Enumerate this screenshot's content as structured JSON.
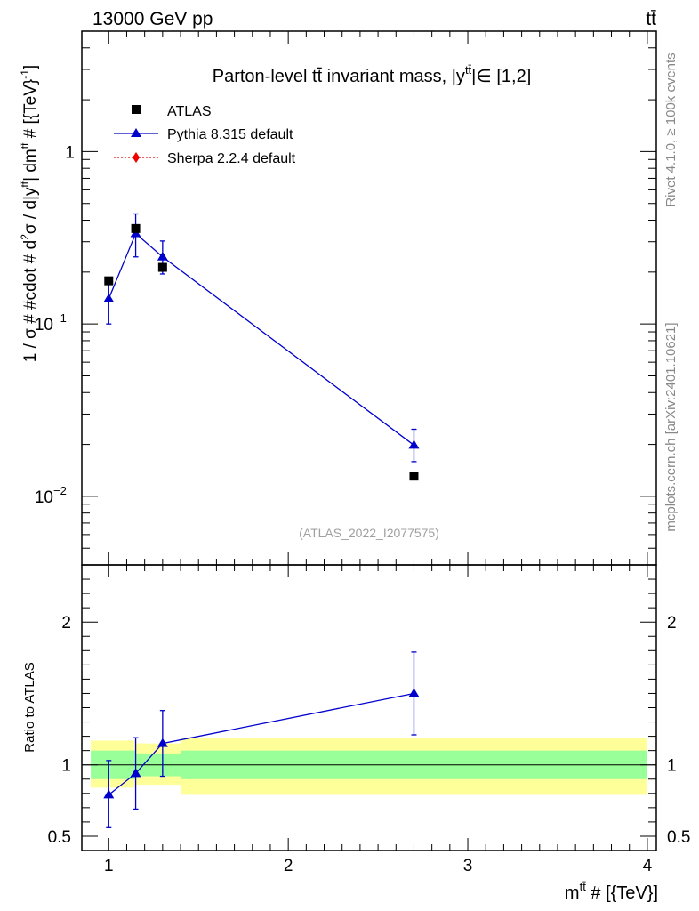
{
  "header": {
    "left": "13000 GeV pp",
    "right": "tt̄"
  },
  "side": {
    "rivet": "Rivet 4.1.0, ≥ 100k events",
    "mcplots": "mcplots.cern.ch [arXiv:2401.10621]"
  },
  "chart_data": [
    {
      "type": "line",
      "panel": "main",
      "title": "Parton-level tt̄ invariant mass, |y^tt̄|∈ [1,2]",
      "title_parts": {
        "main": "Parton-level tt̄ invariant mass, |y",
        "sup": "tt̄",
        "tail": "|∈ [1,2]"
      },
      "watermark": "(ATLAS_2022_I2077575)",
      "ylabel": "1 / σ # #cdot # d²σ / d|y^tt̄| dm^tt̄ # [{TeV}⁻¹]",
      "ylabel_parts": {
        "a": "1 / σ # #cdot # d",
        "a_sup": "2",
        "b": "σ / d|y",
        "b_sup": "tt̄",
        "c": "| dm",
        "c_sup": "tt̄",
        "d": " # [{TeV}",
        "d_sup": "-1",
        "e": "]"
      },
      "yscale": "log",
      "ylim": [
        0.004,
        5.0
      ],
      "xlim": [
        0.85,
        4.05
      ],
      "yticks": [
        {
          "value": 0.01,
          "base": "10",
          "exp": "−2"
        },
        {
          "value": 0.1,
          "base": "10",
          "exp": "−1"
        },
        {
          "value": 1,
          "label": "1"
        }
      ],
      "legend": {
        "position": "top-left",
        "entries": [
          {
            "label": "ATLAS",
            "marker": "square",
            "color": "#000000"
          },
          {
            "label": "Pythia 8.315 default",
            "marker": "triangle",
            "color": "#0000cc"
          },
          {
            "label": "Sherpa 2.2.4 default",
            "marker": "diamond",
            "color": "#ee0000",
            "style": "dotted"
          }
        ]
      },
      "series": [
        {
          "name": "ATLAS",
          "color": "#000000",
          "marker": "square",
          "x": [
            1.0,
            1.15,
            1.3,
            2.7
          ],
          "y": [
            0.178,
            0.358,
            0.213,
            0.0131
          ]
        },
        {
          "name": "Pythia 8.315 default",
          "color": "#0000cc",
          "marker": "triangle",
          "x": [
            1.0,
            1.15,
            1.3,
            2.7
          ],
          "y": [
            0.14,
            0.335,
            0.245,
            0.0198
          ],
          "yerr_low": [
            0.1,
            0.245,
            0.195,
            0.0159
          ],
          "yerr_high": [
            0.178,
            0.435,
            0.303,
            0.0245
          ]
        },
        {
          "name": "Sherpa 2.2.4 default",
          "color": "#ee0000",
          "marker": "diamond",
          "x": [],
          "y": []
        }
      ]
    },
    {
      "type": "line",
      "panel": "ratio",
      "ylabel": "Ratio to ATLAS",
      "xlabel": "m^tt̄ # [{TeV}]",
      "xlabel_parts": {
        "a": "m",
        "sup": "tt̄",
        "b": " # [{TeV}]"
      },
      "ylim": [
        0.4,
        2.4
      ],
      "xlim": [
        0.85,
        4.05
      ],
      "xticks": [
        1,
        2,
        3,
        4
      ],
      "yticks": [
        0.5,
        1,
        2
      ],
      "reference_line": 1,
      "bands": {
        "bins": [
          [
            0.9,
            1.15
          ],
          [
            1.15,
            1.4
          ],
          [
            1.4,
            4.0
          ]
        ],
        "green": [
          [
            0.9,
            1.1
          ],
          [
            0.92,
            1.08
          ],
          [
            0.9,
            1.1
          ]
        ],
        "yellow": [
          [
            0.84,
            1.17
          ],
          [
            0.86,
            1.15
          ],
          [
            0.79,
            1.19
          ]
        ],
        "green_color": "#99ff99",
        "yellow_color": "#ffff99"
      },
      "series": [
        {
          "name": "Pythia 8.315 default",
          "color": "#0000cc",
          "marker": "triangle",
          "x": [
            1.0,
            1.15,
            1.3,
            2.7
          ],
          "y": [
            0.79,
            0.94,
            1.15,
            1.5
          ],
          "yerr_low": [
            0.56,
            0.69,
            0.92,
            1.21
          ],
          "yerr_high": [
            1.03,
            1.19,
            1.38,
            1.79
          ]
        }
      ]
    }
  ]
}
